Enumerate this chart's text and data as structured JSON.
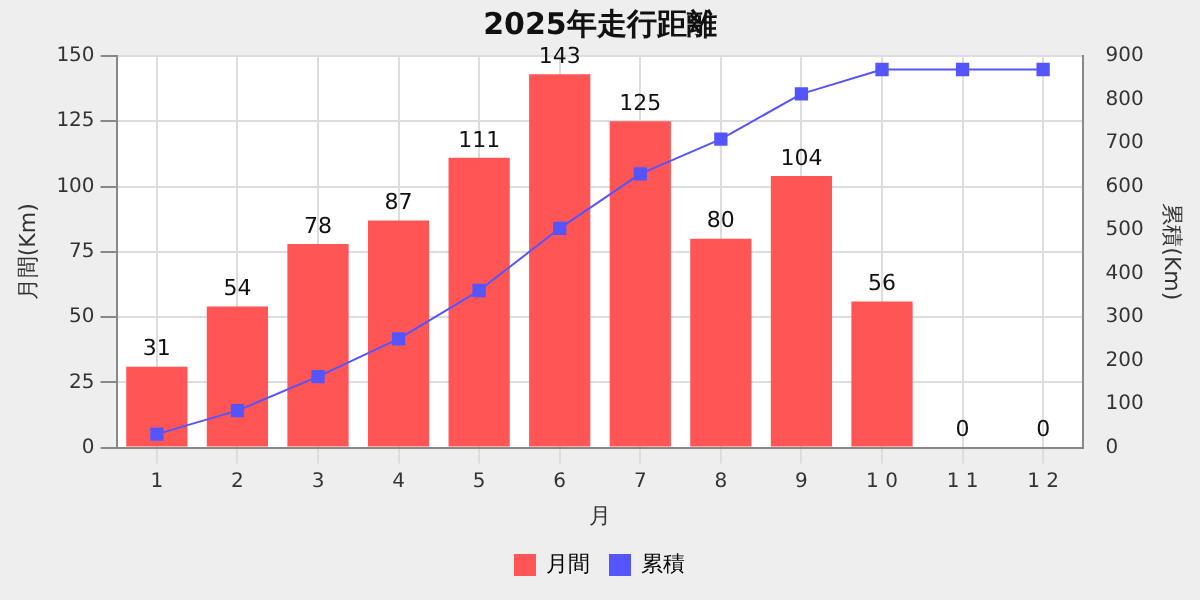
{
  "chart_data": {
    "type": "bar",
    "title": "2025年走行距離",
    "xlabel": "月",
    "ylabel": "月間(Km)",
    "y2label": "累積(Km)",
    "categories": [
      "1",
      "2",
      "3",
      "4",
      "5",
      "6",
      "7",
      "8",
      "9",
      "1 0",
      "1 1",
      "1 2"
    ],
    "series": [
      {
        "name": "月間",
        "color": "#ff5555",
        "values": [
          31,
          54,
          78,
          87,
          111,
          143,
          125,
          80,
          104,
          56,
          0,
          0
        ],
        "value_labels": [
          "31",
          "54",
          "78",
          "87",
          "111",
          "143",
          "125",
          "80",
          "104",
          "56",
          "0",
          "0"
        ]
      },
      {
        "name": "累積",
        "type": "line",
        "axis": "y2",
        "color": "#5555ff",
        "marker": "square",
        "values": [
          31,
          85,
          163,
          250,
          361,
          504,
          629,
          709,
          813,
          869,
          869,
          869
        ]
      }
    ],
    "ylim": [
      0,
      150
    ],
    "yticks": [
      0,
      25,
      50,
      75,
      100,
      125,
      150
    ],
    "y2lim": [
      0,
      900
    ],
    "y2ticks": [
      0,
      100,
      200,
      300,
      400,
      500,
      600,
      700,
      800,
      900
    ],
    "grid": true,
    "legend": "bottom"
  }
}
